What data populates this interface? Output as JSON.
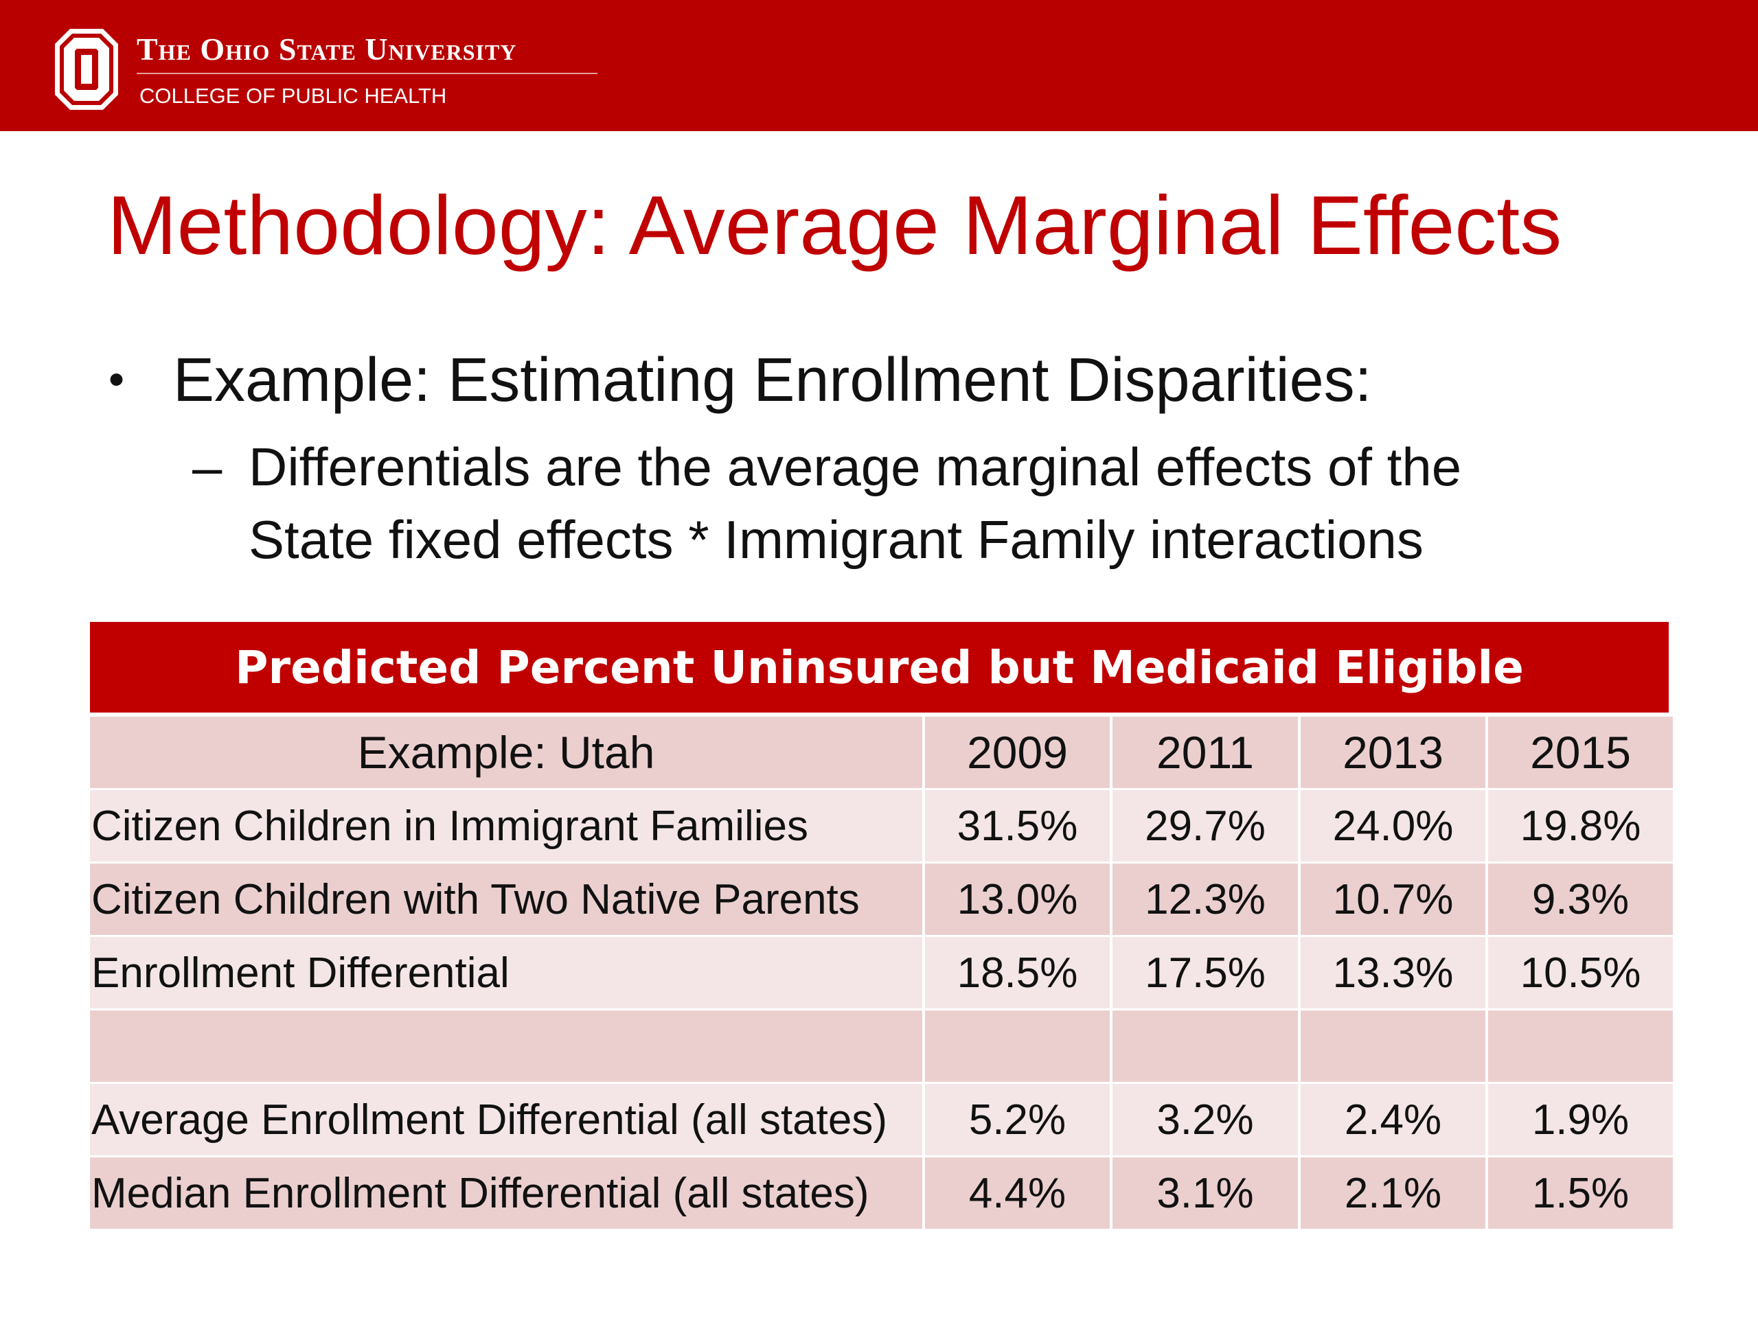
{
  "header": {
    "university": "The Ohio State University",
    "college": "COLLEGE OF PUBLIC HEALTH",
    "logo_icon": "block-o-logo-icon",
    "bar_color": "#b90000"
  },
  "slide": {
    "title": "Methodology: Average Marginal Effects",
    "bullet": "Example:  Estimating Enrollment Disparities:",
    "sub_bullet_line1": "Differentials are the average marginal effects of the",
    "sub_bullet_line2": "State fixed effects * Immigrant Family interactions"
  },
  "table": {
    "title": "Predicted Percent Uninsured but Medicaid Eligible",
    "header": {
      "label": "Example:  Utah",
      "years": [
        "2009",
        "2011",
        "2013",
        "2015"
      ]
    },
    "rows": [
      {
        "label": "Citizen Children in Immigrant Families",
        "values": [
          "31.5%",
          "29.7%",
          "24.0%",
          "19.8%"
        ]
      },
      {
        "label": "Citizen Children with Two Native Parents",
        "values": [
          "13.0%",
          "12.3%",
          "10.7%",
          "9.3%"
        ]
      },
      {
        "label": "Enrollment Differential",
        "values": [
          "18.5%",
          "17.5%",
          "13.3%",
          "10.5%"
        ]
      },
      {
        "label": "",
        "values": [
          "",
          "",
          "",
          ""
        ]
      },
      {
        "label": "Average Enrollment Differential (all states)",
        "values": [
          "5.2%",
          "3.2%",
          "2.4%",
          "1.9%"
        ]
      },
      {
        "label": "Median Enrollment Differential (all states)",
        "values": [
          "4.4%",
          "3.1%",
          "2.1%",
          "1.5%"
        ]
      }
    ]
  }
}
